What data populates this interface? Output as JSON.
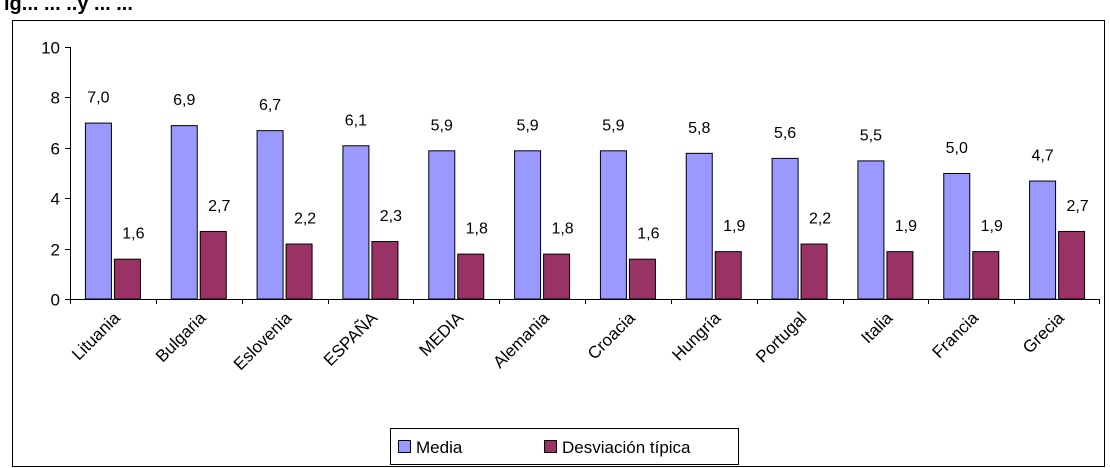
{
  "page": {
    "title_fragment": "ig... ... ..y ... ..."
  },
  "chart_data": {
    "type": "bar",
    "categories": [
      "Lituania",
      "Bulgaria",
      "Eslovenia",
      "ESPAÑA",
      "MEDIA",
      "Alemania",
      "Croacia",
      "Hungría",
      "Portugal",
      "Italia",
      "Francia",
      "Grecia"
    ],
    "series": [
      {
        "name": "Media",
        "color": "#9999ff",
        "values": [
          7.0,
          6.9,
          6.7,
          6.1,
          5.9,
          5.9,
          5.9,
          5.8,
          5.6,
          5.5,
          5.0,
          4.7
        ],
        "labels": [
          "7,0",
          "6,9",
          "6,7",
          "6,1",
          "5,9",
          "5,9",
          "5,9",
          "5,8",
          "5,6",
          "5,5",
          "5,0",
          "4,7"
        ]
      },
      {
        "name": "Desviación típica",
        "color": "#993366",
        "values": [
          1.6,
          2.7,
          2.2,
          2.3,
          1.8,
          1.8,
          1.6,
          1.9,
          2.2,
          1.9,
          1.9,
          2.7
        ],
        "labels": [
          "1,6",
          "2,7",
          "2,2",
          "2,3",
          "1,8",
          "1,8",
          "1,6",
          "1,9",
          "2,2",
          "1,9",
          "1,9",
          "2,7"
        ]
      }
    ],
    "yticks": [
      "0",
      "2",
      "4",
      "6",
      "8",
      "10"
    ],
    "ylim": [
      0,
      10
    ],
    "grid": false,
    "legend_position": "bottom"
  }
}
